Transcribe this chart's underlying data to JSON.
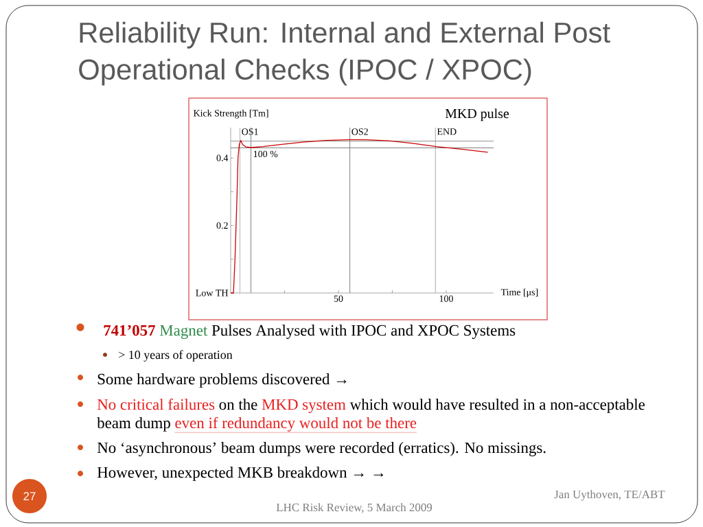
{
  "chart_data": {
    "type": "line",
    "title": "Reliability Run: Internal and External Post Operational Checks (IPOC / XPOC)",
    "subtitle": "MKD pulse",
    "xlabel": "Time [μs]",
    "ylabel": "Kick Strength [Tm]",
    "x": [
      0,
      1.3,
      2.0,
      2.5,
      2.9,
      3.4,
      4.0,
      4.7,
      5.5,
      7.0,
      9.7,
      15,
      23,
      33.5,
      44,
      54.7,
      62.6,
      73.2,
      83.8,
      95.4,
      107,
      119.3
    ],
    "values": [
      0,
      0,
      0.1,
      0.2,
      0.28,
      0.4,
      0.44,
      0.452,
      0.44,
      0.433,
      0.431,
      0.434,
      0.44,
      0.447,
      0.452,
      0.454,
      0.454,
      0.451,
      0.444,
      0.434,
      0.426,
      0.417
    ],
    "color": "#cc0000",
    "xlim": [
      0,
      122
    ],
    "ylim": [
      0,
      0.49
    ],
    "xticks": [
      {
        "value": 25,
        "label": null
      },
      50,
      {
        "value": 75,
        "label": null
      },
      100
    ],
    "yticks": [
      {
        "value": 0,
        "label": "Low TH"
      },
      {
        "value": 0.1,
        "label": null
      },
      0.2,
      {
        "value": 0.3,
        "label": null
      },
      0.4
    ],
    "ref_lines": [
      {
        "axis": "x",
        "value": 4.3,
        "label": "OS1",
        "color": "#b4b4b4"
      },
      {
        "axis": "x",
        "value": 9.4,
        "color": "#808080"
      },
      {
        "axis": "x",
        "value": 55.3,
        "label": "OS2",
        "color": "#808080"
      },
      {
        "axis": "x",
        "value": 95,
        "label": "END",
        "color": "#a8a8a8"
      },
      {
        "axis": "y",
        "value": 0.45,
        "color": "#909090"
      },
      {
        "axis": "y",
        "value": 0.43,
        "color": "#808080"
      }
    ],
    "annotations": [
      {
        "text": "100 %",
        "x": 9.4,
        "y": 0.43
      },
      "741’057",
      "Magnet",
      "Pulses Analysed with IPOC and XPOC Systems",
      "> 10 years of operation",
      "Some hardware problems discovered →",
      "No critical failures",
      "on the",
      "MKD system",
      "which would have resulted in a non-acceptable beam dump",
      "even if redundancy would not be there",
      "No ‘asynchronous’ beam dumps were recorded (erratics). No missings.",
      "However, unexpected MKB breakdown → →",
      "27",
      "LHC Risk Review, 5 March 2009",
      "Jan Uythoven, TE/ABT"
    ]
  }
}
